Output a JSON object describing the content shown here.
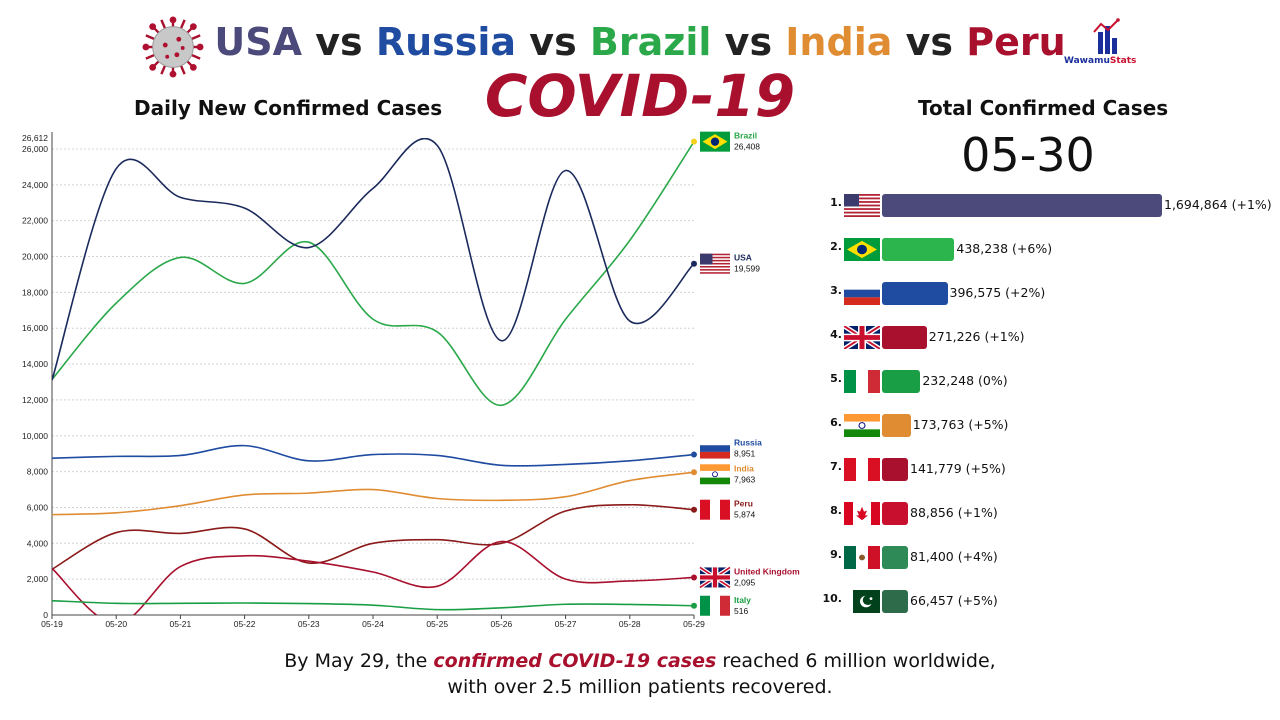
{
  "header": {
    "title_parts": [
      {
        "text": "USA",
        "color": "#4b4a7a"
      },
      {
        "text": " vs ",
        "color": "#222222"
      },
      {
        "text": "Russia",
        "color": "#1f4ba0"
      },
      {
        "text": " vs ",
        "color": "#222222"
      },
      {
        "text": "Brazil",
        "color": "#2aa84a"
      },
      {
        "text": " vs ",
        "color": "#222222"
      },
      {
        "text": "India",
        "color": "#e08c33"
      },
      {
        "text": " vs ",
        "color": "#222222"
      },
      {
        "text": "Peru",
        "color": "#a8102e"
      }
    ],
    "subtitle": "COVID-19",
    "left_heading": "Daily New Confirmed Cases",
    "right_heading": "Total Confirmed Cases",
    "date": "05-30",
    "logo_text_1": "Wawamu",
    "logo_text_2": "Stats",
    "virus_icon": "coronavirus-icon"
  },
  "chart_data": [
    {
      "type": "line",
      "title": "Daily New Confirmed Cases",
      "x": [
        "05-19",
        "05-20",
        "05-21",
        "05-22",
        "05-23",
        "05-24",
        "05-25",
        "05-26",
        "05-27",
        "05-28",
        "05-29"
      ],
      "ylim": [
        0,
        26612
      ],
      "ylim_label": "26,612",
      "yticks": [
        "0",
        "2,000",
        "4,000",
        "6,000",
        "8,000",
        "10,000",
        "12,000",
        "14,000",
        "16,000",
        "18,000",
        "20,000",
        "22,000",
        "24,000",
        "26,000"
      ],
      "grid": true,
      "series": [
        {
          "name": "Brazil",
          "color": "#2aa84a",
          "end_label": "26,408",
          "values": [
            13140,
            17400,
            19950,
            18500,
            20800,
            16500,
            15800,
            11700,
            16500,
            20900,
            26408
          ]
        },
        {
          "name": "USA",
          "color": "#1b2a5c",
          "end_label": "19,599",
          "values": [
            13100,
            24900,
            23300,
            22700,
            20500,
            23800,
            26200,
            15300,
            24800,
            16400,
            19599
          ]
        },
        {
          "name": "Russia",
          "color": "#1f4ba0",
          "end_label": "8,951",
          "values": [
            8750,
            8850,
            8900,
            9450,
            8600,
            8950,
            8900,
            8350,
            8400,
            8600,
            8951
          ]
        },
        {
          "name": "India",
          "color": "#e08c33",
          "end_label": "7,963",
          "values": [
            5600,
            5700,
            6100,
            6700,
            6800,
            7000,
            6500,
            6400,
            6600,
            7500,
            7963
          ]
        },
        {
          "name": "Peru",
          "color": "#8b1a1a",
          "end_label": "5,874",
          "values": [
            2550,
            4600,
            4550,
            4800,
            2900,
            4000,
            4200,
            4000,
            5800,
            6150,
            5874
          ]
        },
        {
          "name": "United Kingdom",
          "color": "#a8102e",
          "end_label": "2,095",
          "values": [
            2600,
            -500,
            2700,
            3300,
            3000,
            2400,
            1600,
            4100,
            2000,
            1900,
            2095
          ]
        },
        {
          "name": "Italy",
          "color": "#1a9e45",
          "end_label": "516",
          "values": [
            800,
            650,
            650,
            670,
            640,
            550,
            300,
            400,
            600,
            590,
            516
          ]
        }
      ]
    },
    {
      "type": "bar",
      "title": "Total Confirmed Cases",
      "categories": [
        "USA",
        "Brazil",
        "Russia",
        "United Kingdom",
        "Italy",
        "India",
        "Peru",
        "Canada",
        "Mexico",
        "Pakistan"
      ],
      "values": [
        1694864,
        438238,
        396575,
        271226,
        232248,
        173763,
        141779,
        88856,
        81400,
        66457
      ],
      "ranks": [
        "1.",
        "2.",
        "3.",
        "4.",
        "5.",
        "6.",
        "7.",
        "8.",
        "9.",
        "10."
      ],
      "labels": [
        "1,694,864 (+1%)",
        "438,238 (+6%)",
        "396,575 (+2%)",
        "271,226 (+1%)",
        "232,248 (0%)",
        "173,763 (+5%)",
        "141,779 (+5%)",
        "88,856 (+1%)",
        "81,400 (+4%)",
        "66,457 (+5%)"
      ],
      "colors": [
        "#4b4a7a",
        "#2cb54c",
        "#1f4ba0",
        "#a8102e",
        "#1a9e45",
        "#e08c33",
        "#a8102e",
        "#c8102e",
        "#2e8b57",
        "#2e6b4a"
      ],
      "flags": [
        "usa-flag-icon",
        "brazil-flag-icon",
        "russia-flag-icon",
        "uk-flag-icon",
        "italy-flag-icon",
        "india-flag-icon",
        "peru-flag-icon",
        "canada-flag-icon",
        "mexico-flag-icon",
        "pakistan-flag-icon"
      ]
    }
  ],
  "caption": {
    "before": "By May 29, the ",
    "emphasis": "confirmed COVID-19 cases",
    "after": " reached 6 million worldwide,",
    "line2": "with over 2.5 million patients recovered."
  }
}
